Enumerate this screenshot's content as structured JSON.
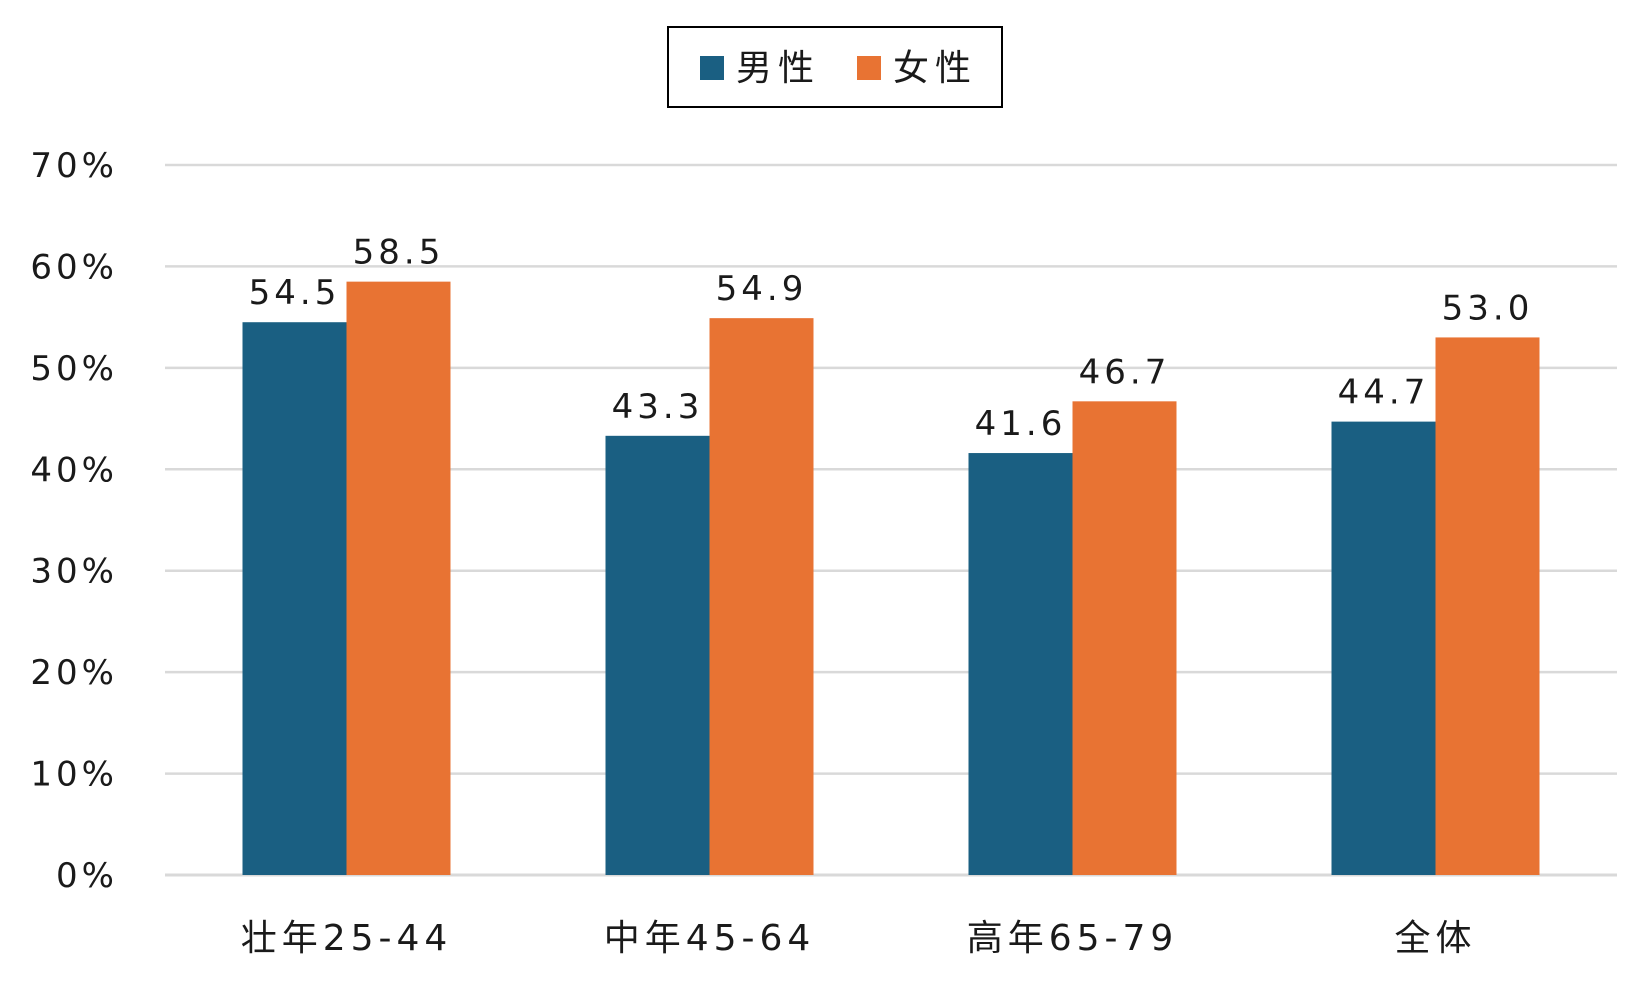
{
  "chart_data": {
    "type": "bar",
    "categories": [
      "壮年25-44",
      "中年45-64",
      "高年65-79",
      "全体"
    ],
    "series": [
      {
        "name": "男性",
        "color": "#1a5f82",
        "values": [
          54.5,
          43.3,
          41.6,
          44.7
        ]
      },
      {
        "name": "女性",
        "color": "#e87333",
        "values": [
          58.5,
          54.9,
          46.7,
          53.0
        ]
      }
    ],
    "y_ticks": [
      "0%",
      "10%",
      "20%",
      "30%",
      "40%",
      "50%",
      "60%",
      "70%"
    ],
    "ylim": [
      0,
      70
    ],
    "grid": true,
    "legend": "top-center",
    "title": "",
    "xlabel": "",
    "ylabel": ""
  }
}
